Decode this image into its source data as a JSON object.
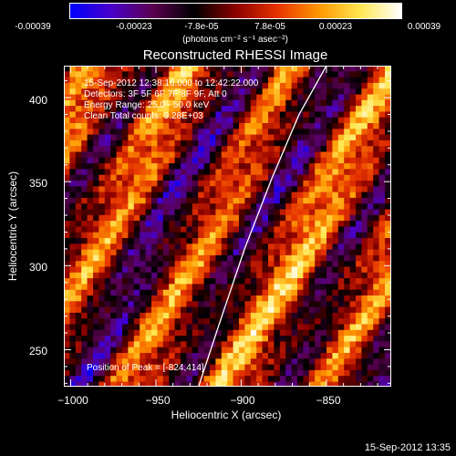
{
  "colorbar": {
    "ticks": [
      "-0.00039",
      "-0.00023",
      "-7.8e-05",
      "7.8e-05",
      "0.00023",
      "0.00039"
    ],
    "tick_values": [
      -0.00039,
      -0.00023,
      -7.8e-05,
      7.8e-05,
      0.00023,
      0.00039
    ],
    "unit": "(photons cm⁻² s⁻¹ asec⁻²)"
  },
  "chart_data": {
    "type": "heatmap",
    "title": "Reconstructed RHESSI Image",
    "xlabel": "Heliocentric X (arcsec)",
    "ylabel": "Heliocentric Y (arcsec)",
    "xlim": [
      -1004,
      -812
    ],
    "ylim": [
      228,
      419
    ],
    "xticks": [
      -1000,
      -950,
      -900,
      -850
    ],
    "yticks": [
      250,
      300,
      350,
      400
    ],
    "xtick_labels": [
      "−1000",
      "−950",
      "−900",
      "−850"
    ],
    "ytick_labels": [
      "250",
      "300",
      "350",
      "400"
    ],
    "zlim": [
      -0.00039,
      0.00039
    ],
    "colormap": [
      "#0000ff",
      "#4b00c8",
      "#5a0050",
      "#000000",
      "#8c0000",
      "#e63200",
      "#ff9600",
      "#ffe650",
      "#ffffff"
    ],
    "limb_curve": {
      "x": [
        -925,
        -913,
        -898,
        -882,
        -866,
        -850
      ],
      "y": [
        228,
        265,
        310,
        352,
        390,
        419
      ]
    },
    "peak": [
      -824,
      414
    ]
  },
  "annotations": {
    "line1": "15-Sep-2012 12:38:16.000 to 12:42:22.000",
    "line2": "Detectors: 3F 5F 6F 7F 8F 9F, Att 0",
    "line3": "Energy Range: 25.0 - 50.0 keV",
    "line4": "Clean     Total counts: 9.28E+03",
    "peak_text": "Position of Peak = [-824,414]"
  },
  "timestamp": "15-Sep-2012 13:35"
}
